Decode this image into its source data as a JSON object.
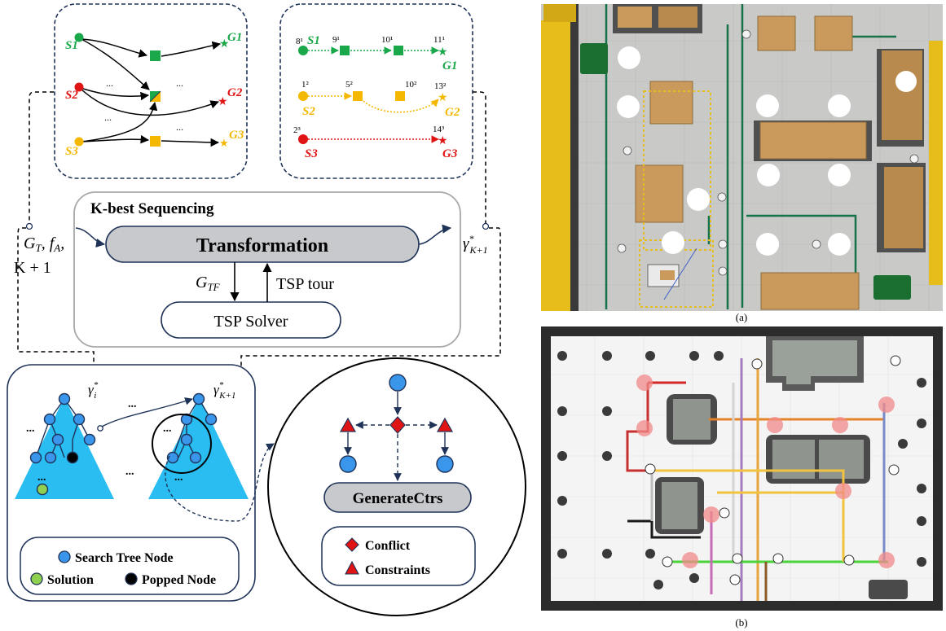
{
  "colors": {
    "green": "#1aa84a",
    "red": "#e01414",
    "yellow": "#f4b800",
    "tree_blue": "#29bdf2",
    "node_blue": "#3a96ea",
    "navy": "#1f3358",
    "pill_gray": "#c8c9cc",
    "box_gray": "#a8a8a8",
    "solution_green": "#90d050",
    "floor": "#c9cac8",
    "shelf_yellow": "#e7bd1c",
    "box_tan": "#c99a5b"
  },
  "left_graph": {
    "starts": [
      "S1",
      "S2",
      "S3"
    ],
    "goals": [
      "G1",
      "G2",
      "G3"
    ],
    "ellipsis": "..."
  },
  "right_graph": {
    "row1": {
      "start": "S1",
      "goal": "G1",
      "times": [
        "8¹",
        "9¹",
        "10¹",
        "11¹"
      ]
    },
    "row2": {
      "start": "S2",
      "goal": "G2",
      "times": [
        "1²",
        "5²",
        "10²",
        "13²"
      ]
    },
    "row3": {
      "start": "S3",
      "goal": "G3",
      "times": [
        "2³",
        "14³"
      ]
    }
  },
  "kbest": {
    "title": "K-best Sequencing",
    "transformation": "Transformation",
    "tsp_solver": "TSP Solver",
    "gtf_label": "G_TF",
    "tsp_tour_label": "TSP tour",
    "input_line1": "G_T, f_A,",
    "input_line2": "K + 1",
    "output_label": "γ*_{K+1}"
  },
  "search_tree": {
    "gamma_i": "γ*_i",
    "gamma_k1": "γ*_{K+1}",
    "dots": "...",
    "dots_small": "..."
  },
  "legend_left": [
    {
      "label": "Search Tree Node",
      "color": "#3a96ea"
    },
    {
      "label": "Solution",
      "color": "#90d050"
    },
    {
      "label": "Popped Node",
      "color": "#000000"
    }
  ],
  "generate": {
    "button": "GenerateCtrs"
  },
  "legend_right": [
    {
      "label": "Conflict",
      "shape": "diamond"
    },
    {
      "label": "Constraints",
      "shape": "triangle"
    }
  ],
  "captions": {
    "a": "(a)",
    "b": "(b)"
  }
}
